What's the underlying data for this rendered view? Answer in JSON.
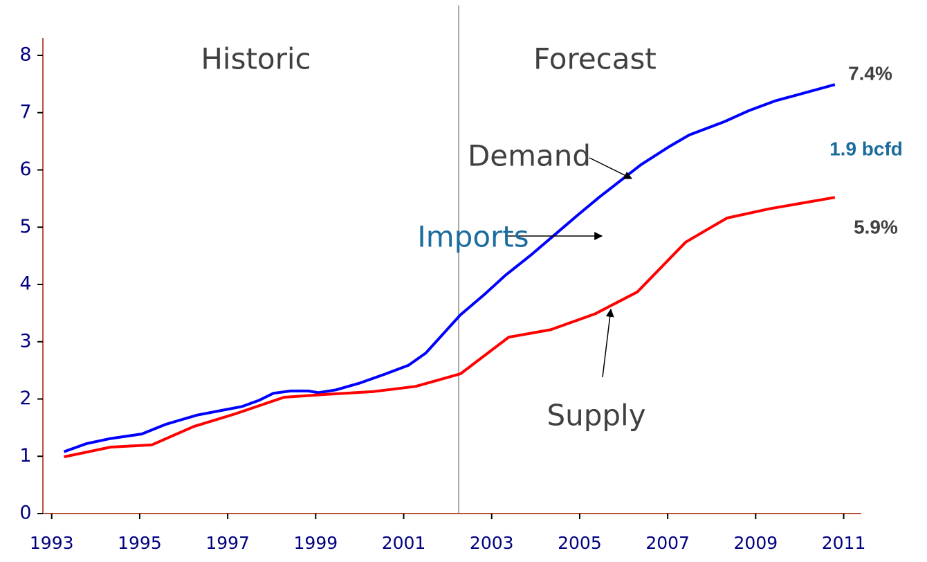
{
  "chart_data": {
    "type": "line",
    "xlim": [
      1992.8,
      2011.4
    ],
    "ylim": [
      0,
      8
    ],
    "xticks": [
      1993,
      1995,
      1997,
      1999,
      2001,
      2003,
      2005,
      2007,
      2009,
      2011
    ],
    "yticks": [
      0,
      1,
      2,
      3,
      4,
      5,
      6,
      7,
      8
    ],
    "series": [
      {
        "name": "Demand",
        "color": "#0000ff",
        "x": [
          1993.28,
          1993.79,
          1994.34,
          1995.05,
          1995.6,
          1996.31,
          1996.86,
          1997.33,
          1997.72,
          1998.04,
          1998.43,
          1998.83,
          1999.06,
          1999.46,
          2000.01,
          2000.56,
          2001.11,
          2001.5,
          2001.9,
          2002.29,
          2002.84,
          2003.31,
          2003.87,
          2004.42,
          2004.97,
          2005.44,
          2005.99,
          2006.39,
          2007.02,
          2007.49,
          2008.28,
          2008.83,
          2009.46,
          2010.09,
          2010.8
        ],
        "values": [
          1.08,
          1.22,
          1.31,
          1.39,
          1.56,
          1.72,
          1.8,
          1.87,
          1.98,
          2.1,
          2.14,
          2.14,
          2.11,
          2.16,
          2.28,
          2.43,
          2.59,
          2.8,
          3.14,
          3.47,
          3.83,
          4.16,
          4.5,
          4.86,
          5.22,
          5.52,
          5.85,
          6.09,
          6.4,
          6.61,
          6.84,
          7.03,
          7.21,
          7.34,
          7.49
        ]
      },
      {
        "name": "Supply",
        "color": "#ff0000",
        "x": [
          1993.28,
          1994.34,
          1995.28,
          1996.23,
          1997.17,
          1998.28,
          1999.22,
          2000.32,
          2001.27,
          2002.29,
          2003.39,
          2004.34,
          2005.36,
          2006.31,
          2007.41,
          2008.35,
          2009.3,
          2010.8
        ],
        "values": [
          0.99,
          1.16,
          1.2,
          1.52,
          1.74,
          2.03,
          2.08,
          2.13,
          2.22,
          2.44,
          3.08,
          3.21,
          3.49,
          3.87,
          4.74,
          5.16,
          5.32,
          5.52
        ]
      }
    ],
    "annotations": [
      "Historic",
      "Forecast",
      "Imports",
      "7.4%",
      "1.9 bcfd",
      "5.9%"
    ]
  }
}
